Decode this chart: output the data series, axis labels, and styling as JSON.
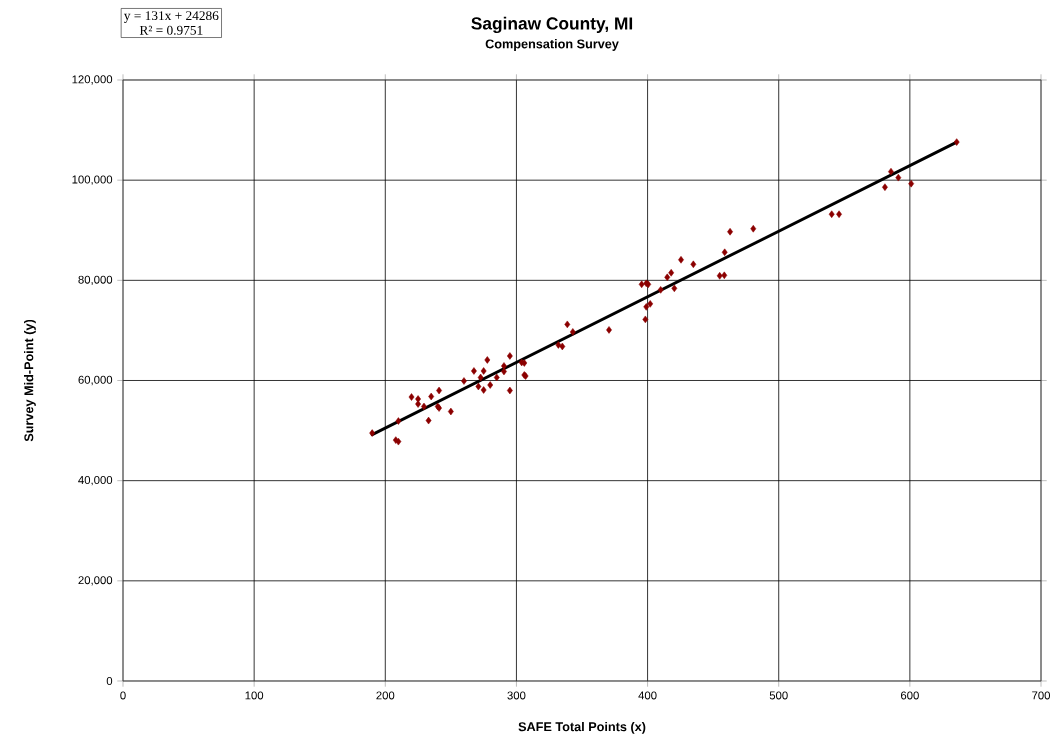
{
  "chart_data": {
    "type": "scatter",
    "title": "Saginaw County, MI",
    "subtitle": "Compensation Survey",
    "xlabel": "SAFE Total Points (x)",
    "ylabel": "Survey  Mid-Point (y)",
    "annotations": [
      "y = 131x + 24286",
      "R² = 0.9751"
    ],
    "xlim": [
      0,
      700
    ],
    "xticks": [
      0,
      100,
      200,
      300,
      400,
      500,
      600,
      700
    ],
    "ylim": [
      0,
      120000
    ],
    "yticks": [
      {
        "value": 0,
        "label": "0"
      },
      {
        "value": 20000,
        "label": "20,000"
      },
      {
        "value": 40000,
        "label": "40,000"
      },
      {
        "value": 60000,
        "label": "60,000"
      },
      {
        "value": 80000,
        "label": "80,000"
      },
      {
        "value": 100000,
        "label": "100,000"
      },
      {
        "value": 120000,
        "label": "120,000"
      }
    ],
    "grid": true,
    "marker": "diamond",
    "series": [
      {
        "color": "#8b0000",
        "x": [
          190,
          208,
          210,
          210,
          220,
          225,
          225,
          229.5,
          233,
          235,
          241,
          240,
          241,
          250,
          260,
          267.6,
          277.8,
          275,
          272.7,
          271,
          275,
          280,
          285,
          290.5,
          290.5,
          295,
          295,
          304,
          306,
          306,
          307,
          332,
          335,
          343,
          338.8,
          370.6,
          398.3,
          399,
          402,
          395.5,
          399,
          400.5,
          410,
          420.4,
          415,
          418,
          425.5,
          434.9,
          455,
          458.5,
          458.8,
          462.9,
          480.6,
          540.4,
          546,
          581,
          585.6,
          591.2,
          601,
          635.7
        ],
        "values": [
          49500,
          48100,
          47800,
          51900,
          56700,
          56300,
          55300,
          54800,
          52000,
          56800,
          58000,
          54800,
          54500,
          53800,
          59900,
          61900,
          64100,
          61900,
          60600,
          58800,
          58100,
          59100,
          60600,
          62900,
          61800,
          64900,
          58000,
          63600,
          63500,
          61100,
          60900,
          67100,
          66800,
          69700,
          71200,
          70100,
          72200,
          74700,
          75300,
          79200,
          79400,
          79200,
          78100,
          78400,
          80600,
          81500,
          84100,
          83200,
          80900,
          81000,
          85600,
          89700,
          90300,
          93200,
          93200,
          98600,
          101700,
          100500,
          99300,
          107600
        ]
      },
      {
        "type": "line",
        "color": "#000000",
        "marker": "none",
        "line_style": "solid",
        "x": [
          190,
          635
        ],
        "values": [
          49200,
          107500
        ]
      }
    ]
  }
}
